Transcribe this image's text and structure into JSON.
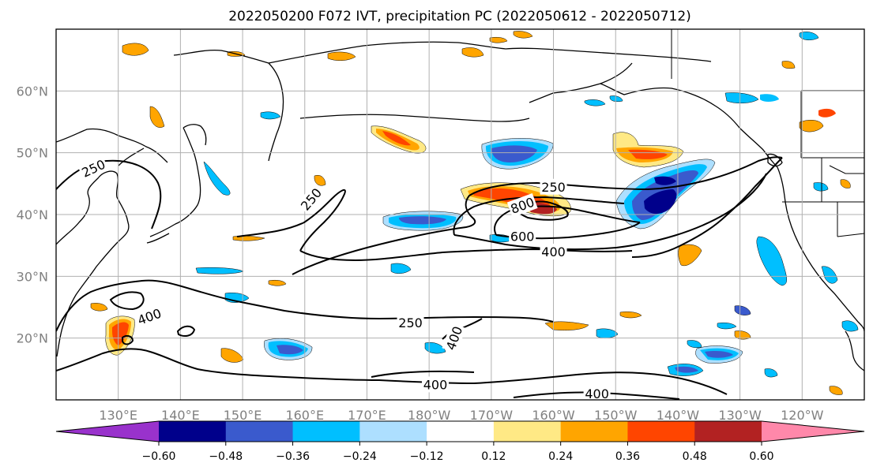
{
  "title": "2022050200 F072 IVT, precipitation PC (2022050612 - 2022050712)",
  "map": {
    "lon_range": [
      120,
      250
    ],
    "lat_range": [
      10,
      70
    ],
    "lon_ticks": [
      {
        "lon": 130,
        "label": "130°E"
      },
      {
        "lon": 140,
        "label": "140°E"
      },
      {
        "lon": 150,
        "label": "150°E"
      },
      {
        "lon": 160,
        "label": "160°E"
      },
      {
        "lon": 170,
        "label": "170°E"
      },
      {
        "lon": 180,
        "label": "180°W"
      },
      {
        "lon": 190,
        "label": "170°W"
      },
      {
        "lon": 200,
        "label": "160°W"
      },
      {
        "lon": 210,
        "label": "150°W"
      },
      {
        "lon": 220,
        "label": "140°W"
      },
      {
        "lon": 230,
        "label": "130°W"
      },
      {
        "lon": 240,
        "label": "120°W"
      }
    ],
    "lat_ticks": [
      {
        "lat": 60,
        "label": "60°N"
      },
      {
        "lat": 50,
        "label": "50°N"
      },
      {
        "lat": 40,
        "label": "40°N"
      },
      {
        "lat": 30,
        "label": "30°N"
      },
      {
        "lat": 20,
        "label": "20°N"
      }
    ],
    "grid": true
  },
  "colorbar": {
    "colors": [
      "#9932CC",
      "#00008B",
      "#3A5ACD",
      "#00BFFF",
      "#ADDFFF",
      "#FFFFFF",
      "#FFE985",
      "#FFA500",
      "#FF4500",
      "#B22222",
      "#FF88AA"
    ],
    "tick_labels": [
      "−0.60",
      "−0.48",
      "−0.36",
      "−0.24",
      "−0.12",
      "0.12",
      "0.24",
      "0.36",
      "0.48",
      "0.60"
    ],
    "extend": "both"
  },
  "ivt_contours": {
    "levels": [
      250,
      400,
      600,
      800
    ],
    "labels": [
      {
        "text": "250",
        "lon": 126,
        "lat": 47.5,
        "angle": -25
      },
      {
        "text": "250",
        "lon": 161,
        "lat": 42.5,
        "angle": -50
      },
      {
        "text": "250",
        "lon": 200,
        "lat": 44.5,
        "angle": 0
      },
      {
        "text": "800",
        "lon": 195,
        "lat": 41.5,
        "angle": -20
      },
      {
        "text": "600",
        "lon": 195,
        "lat": 36.5,
        "angle": 0
      },
      {
        "text": "400",
        "lon": 200,
        "lat": 34,
        "angle": 0
      },
      {
        "text": "400",
        "lon": 135,
        "lat": 23.5,
        "angle": -20
      },
      {
        "text": "250",
        "lon": 177,
        "lat": 22.5,
        "angle": 0
      },
      {
        "text": "400",
        "lon": 184,
        "lat": 20,
        "angle": -70
      },
      {
        "text": "400",
        "lon": 181,
        "lat": 12.5,
        "angle": 0
      },
      {
        "text": "400",
        "lon": 207,
        "lat": 11,
        "angle": 0
      }
    ]
  }
}
